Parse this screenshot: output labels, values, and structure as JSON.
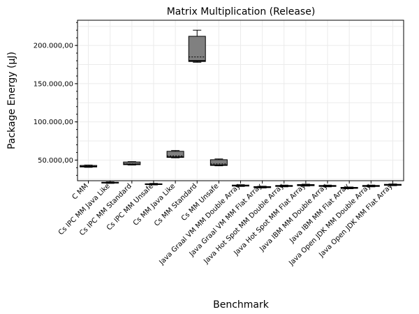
{
  "chart_data": {
    "type": "box",
    "title": "Matrix Multiplication (Release)",
    "xlabel": "Benchmark",
    "ylabel": "Package Energy (µJ)",
    "ylim": [
      23000,
      233000
    ],
    "yticks": [
      50000,
      100000,
      150000,
      200000
    ],
    "ytick_labels": [
      "50.000,00",
      "100.000,00",
      "150.000,00",
      "200.000,00"
    ],
    "grid": true,
    "box_color": "#808080",
    "categories": [
      "C MM",
      "Cs IPC MM Java Like",
      "Cs IPC MM Standard",
      "Cs IPC MM Unsafe",
      "Cs MM Java Like",
      "Cs MM Standard",
      "Cs MM Unsafe",
      "Java Graal VM MM Double Array",
      "Java Graal VM MM Flat Array",
      "Java Hot Spot MM Double Array",
      "Java Hot Spot MM Flat Array",
      "Java IBM MM Double Array",
      "Java IBM MM Flat Array",
      "Java Open JDK MM Double Array",
      "Java Open JDK MM Flat Array"
    ],
    "boxes": [
      {
        "whisker_low": 40500,
        "q1": 41000,
        "median": 41500,
        "q3": 43000,
        "whisker_high": 43500,
        "mean": 42000
      },
      {
        "whisker_low": 19500,
        "q1": 20000,
        "median": 20300,
        "q3": 21000,
        "whisker_high": 21500,
        "mean": 20500
      },
      {
        "whisker_low": 43500,
        "q1": 44000,
        "median": 44500,
        "q3": 47500,
        "whisker_high": 48000,
        "mean": 45000
      },
      {
        "whisker_low": 17500,
        "q1": 18000,
        "median": 18300,
        "q3": 19000,
        "whisker_high": 19500,
        "mean": 18500
      },
      {
        "whisker_low": 53000,
        "q1": 53500,
        "median": 54000,
        "q3": 61500,
        "whisker_high": 62500,
        "mean": 55500
      },
      {
        "whisker_low": 178000,
        "q1": 179000,
        "median": 180000,
        "q3": 212000,
        "whisker_high": 220000,
        "mean": 185000
      },
      {
        "whisker_low": 42500,
        "q1": 43000,
        "median": 43500,
        "q3": 50500,
        "whisker_high": 51500,
        "mean": 45000
      },
      {
        "whisker_low": 15500,
        "q1": 16000,
        "median": 16500,
        "q3": 17300,
        "whisker_high": 17800,
        "mean": 16800
      },
      {
        "whisker_low": 13500,
        "q1": 14000,
        "median": 14500,
        "q3": 15300,
        "whisker_high": 15800,
        "mean": 14700
      },
      {
        "whisker_low": 15000,
        "q1": 15500,
        "median": 16000,
        "q3": 16800,
        "whisker_high": 17300,
        "mean": 16200
      },
      {
        "whisker_low": 16000,
        "q1": 16500,
        "median": 17000,
        "q3": 18000,
        "whisker_high": 18500,
        "mean": 17200
      },
      {
        "whisker_low": 15000,
        "q1": 15500,
        "median": 16000,
        "q3": 16800,
        "whisker_high": 17300,
        "mean": 16200
      },
      {
        "whisker_low": 12500,
        "q1": 13000,
        "median": 13500,
        "q3": 14300,
        "whisker_high": 14800,
        "mean": 13700
      },
      {
        "whisker_low": 15000,
        "q1": 15500,
        "median": 16000,
        "q3": 16800,
        "whisker_high": 17300,
        "mean": 16200
      },
      {
        "whisker_low": 16500,
        "q1": 17000,
        "median": 17300,
        "q3": 18300,
        "whisker_high": 18800,
        "mean": 17500
      }
    ]
  }
}
